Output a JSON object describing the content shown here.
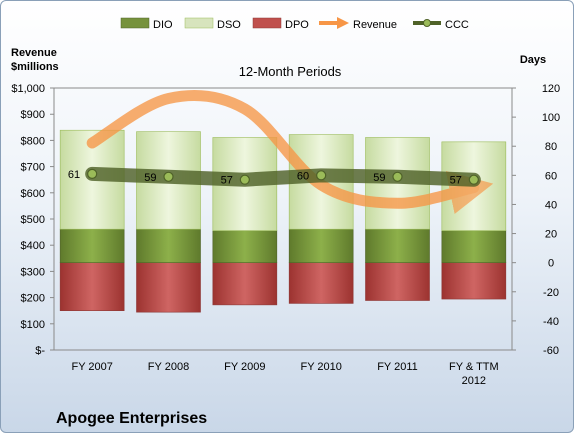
{
  "chart_data": {
    "type": "bar",
    "subtitle": "12-Month Periods",
    "company": "Apogee Enterprises",
    "left_axis_title": [
      "Revenue",
      "$millions"
    ],
    "right_axis_title": "Days",
    "categories": [
      [
        "FY 2007"
      ],
      [
        "FY 2008"
      ],
      [
        "FY 2009"
      ],
      [
        "FY 2010"
      ],
      [
        "FY 2011"
      ],
      [
        "FY & TTM",
        "2012"
      ]
    ],
    "left_ticks": [
      "$-",
      "$100",
      "$200",
      "$300",
      "$400",
      "$500",
      "$600",
      "$700",
      "$800",
      "$900",
      "$1,000"
    ],
    "left_range": [
      0,
      1000
    ],
    "right_ticks": [
      "-60",
      "-40",
      "-20",
      "0",
      "20",
      "40",
      "60",
      "80",
      "100",
      "120"
    ],
    "right_range": [
      -60,
      120
    ],
    "legend": [
      "DIO",
      "DSO",
      "DPO",
      "Revenue",
      "CCC"
    ],
    "series": [
      {
        "name": "DIO",
        "axis": "right",
        "color": "#76923c",
        "values": [
          23,
          23,
          22,
          23,
          23,
          22
        ]
      },
      {
        "name": "DSO",
        "axis": "right",
        "color": "#d7e4bd",
        "values": [
          68,
          67,
          64,
          65,
          63,
          61
        ]
      },
      {
        "name": "DPO",
        "axis": "right",
        "color": "#c0504d",
        "values": [
          -33,
          -34,
          -29,
          -28,
          -26,
          -25
        ]
      },
      {
        "name": "Revenue",
        "axis": "left",
        "color": "#f79646",
        "values": [
          790,
          960,
          920,
          630,
          560,
          620
        ]
      },
      {
        "name": "CCC",
        "axis": "right",
        "color": "#4f6228",
        "values": [
          61,
          59,
          57,
          60,
          59,
          57
        ]
      }
    ],
    "ccc_labels": [
      "61",
      "59",
      "57",
      "60",
      "59",
      "57"
    ],
    "gridlines": false,
    "legend_position": "top"
  }
}
